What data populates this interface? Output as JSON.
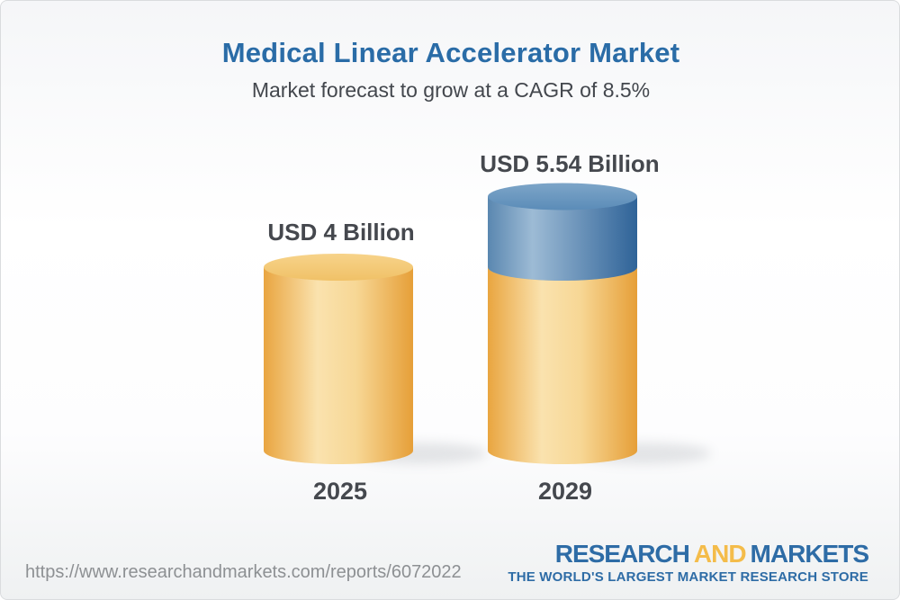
{
  "header": {
    "title": "Medical Linear Accelerator Market",
    "subtitle": "Market forecast to grow at a CAGR of 8.5%"
  },
  "chart_data": {
    "type": "bar",
    "variant": "3d-cylinder",
    "title": "Medical Linear Accelerator Market",
    "subtitle": "Market forecast to grow at a CAGR of 8.5%",
    "cagr_pct": 8.5,
    "unit": "USD Billion",
    "categories": [
      "2025",
      "2029"
    ],
    "values": [
      4,
      5.54
    ],
    "axes_visible": false,
    "legend_visible": false,
    "bars": [
      {
        "category": "2025",
        "value": 4,
        "label": "USD 4 Billion",
        "segments": [
          {
            "name": "market-size-2025",
            "value": 4,
            "palette": "gold"
          }
        ]
      },
      {
        "category": "2029",
        "value": 5.54,
        "label": "USD 5.54 Billion",
        "segments": [
          {
            "name": "base-market",
            "value": 4,
            "palette": "gold"
          },
          {
            "name": "forecast-growth",
            "value": 1.54,
            "palette": "blue"
          }
        ]
      }
    ],
    "palette": {
      "gold": "#F2C469",
      "blue": "#4F81AD"
    }
  },
  "footer": {
    "url": "https://www.researchandmarkets.com/reports/6072022",
    "logo": {
      "part1": "RESEARCH",
      "part2": "AND",
      "part3": "MARKETS",
      "tagline": "THE WORLD'S LARGEST MARKET RESEARCH STORE"
    }
  },
  "colors": {
    "title_blue": "#2A6CA7",
    "subtitle_gray": "#43474D",
    "label_dark": "#45484E",
    "url_gray": "#8D9093",
    "logo_blue": "#2E6CA6",
    "logo_gold": "#F4BC4A"
  }
}
